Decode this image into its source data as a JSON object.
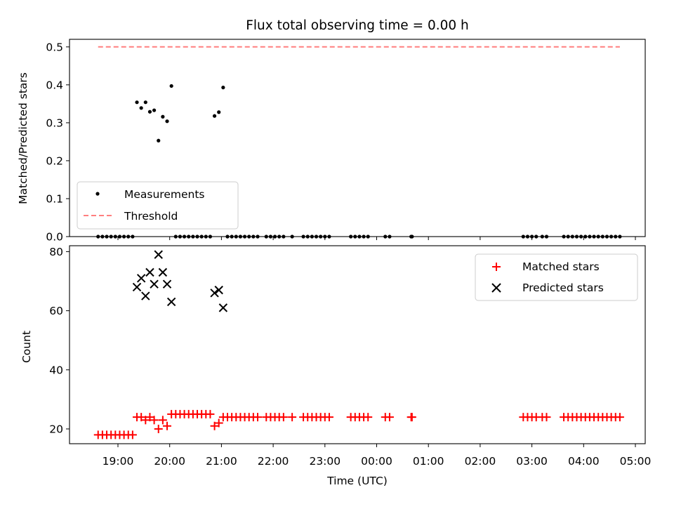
{
  "chart_data": [
    {
      "type": "scatter",
      "title": "Flux total observing time = 0.00 h",
      "xlabel": "",
      "ylabel": "Matched/Predicted stars",
      "ylim": [
        0,
        0.52
      ],
      "yticks": [
        "0.0",
        "0.1",
        "0.2",
        "0.3",
        "0.4",
        "0.5"
      ],
      "legend_position": "lower-left",
      "series": [
        {
          "name": "Measurements",
          "kind": "scatter",
          "color": "#000000",
          "points": [
            [
              "18:37",
              0
            ],
            [
              "18:42",
              0
            ],
            [
              "18:47",
              0
            ],
            [
              "18:52",
              0
            ],
            [
              "18:57",
              0
            ],
            [
              "19:02",
              0
            ],
            [
              "19:07",
              0
            ],
            [
              "19:12",
              0
            ],
            [
              "19:17",
              0
            ],
            [
              "19:22",
              0.354
            ],
            [
              "19:27",
              0.339
            ],
            [
              "19:32",
              0.354
            ],
            [
              "19:37",
              0.329
            ],
            [
              "19:42",
              0.333
            ],
            [
              "19:47",
              0.253
            ],
            [
              "19:52",
              0.316
            ],
            [
              "19:57",
              0.304
            ],
            [
              "20:02",
              0.397
            ],
            [
              "20:07",
              0
            ],
            [
              "20:12",
              0
            ],
            [
              "20:17",
              0
            ],
            [
              "20:22",
              0
            ],
            [
              "20:27",
              0
            ],
            [
              "20:32",
              0
            ],
            [
              "20:37",
              0
            ],
            [
              "20:42",
              0
            ],
            [
              "20:47",
              0
            ],
            [
              "20:52",
              0.318
            ],
            [
              "20:57",
              0.328
            ],
            [
              "21:02",
              0.393
            ],
            [
              "21:07",
              0
            ],
            [
              "21:12",
              0
            ],
            [
              "21:17",
              0
            ],
            [
              "21:22",
              0
            ],
            [
              "21:27",
              0
            ],
            [
              "21:32",
              0
            ],
            [
              "21:37",
              0
            ],
            [
              "21:42",
              0
            ],
            [
              "21:52",
              0
            ],
            [
              "21:57",
              0
            ],
            [
              "22:02",
              0
            ],
            [
              "22:07",
              0
            ],
            [
              "22:12",
              0
            ],
            [
              "22:22",
              0
            ],
            [
              "22:35",
              0
            ],
            [
              "22:40",
              0
            ],
            [
              "22:45",
              0
            ],
            [
              "22:50",
              0
            ],
            [
              "22:55",
              0
            ],
            [
              "23:00",
              0
            ],
            [
              "23:05",
              0
            ],
            [
              "23:30",
              0
            ],
            [
              "23:35",
              0
            ],
            [
              "23:40",
              0
            ],
            [
              "23:45",
              0
            ],
            [
              "23:50",
              0
            ],
            [
              "00:10",
              0
            ],
            [
              "00:15",
              0
            ],
            [
              "00:40",
              0
            ],
            [
              "00:41",
              0
            ],
            [
              "02:50",
              0
            ],
            [
              "02:55",
              0
            ],
            [
              "03:00",
              0
            ],
            [
              "03:05",
              0
            ],
            [
              "03:12",
              0
            ],
            [
              "03:17",
              0
            ],
            [
              "03:37",
              0
            ],
            [
              "03:42",
              0
            ],
            [
              "03:47",
              0
            ],
            [
              "03:52",
              0
            ],
            [
              "03:57",
              0
            ],
            [
              "04:02",
              0
            ],
            [
              "04:07",
              0
            ],
            [
              "04:12",
              0
            ],
            [
              "04:17",
              0
            ],
            [
              "04:22",
              0
            ],
            [
              "04:27",
              0
            ],
            [
              "04:32",
              0
            ],
            [
              "04:37",
              0
            ],
            [
              "04:42",
              0
            ]
          ]
        },
        {
          "name": "Threshold",
          "kind": "line",
          "color": "#ff7f7f",
          "dash": "dashed",
          "x": [
            "18:37",
            "04:42"
          ],
          "y": [
            0.5,
            0.5
          ]
        }
      ]
    },
    {
      "type": "scatter",
      "title": "",
      "xlabel": "Time (UTC)",
      "ylabel": "Count",
      "ylim": [
        15,
        82
      ],
      "yticks": [
        "20",
        "40",
        "60",
        "80"
      ],
      "xticks": [
        "19:00",
        "20:00",
        "21:00",
        "22:00",
        "23:00",
        "00:00",
        "01:00",
        "02:00",
        "03:00",
        "04:00",
        "05:00"
      ],
      "legend_position": "upper-right",
      "series": [
        {
          "name": "Matched stars",
          "kind": "plus",
          "color": "#ff0000",
          "points": [
            [
              "18:37",
              18
            ],
            [
              "18:42",
              18
            ],
            [
              "18:47",
              18
            ],
            [
              "18:52",
              18
            ],
            [
              "18:57",
              18
            ],
            [
              "19:02",
              18
            ],
            [
              "19:07",
              18
            ],
            [
              "19:12",
              18
            ],
            [
              "19:17",
              18
            ],
            [
              "19:22",
              24
            ],
            [
              "19:27",
              24
            ],
            [
              "19:32",
              23
            ],
            [
              "19:37",
              24
            ],
            [
              "19:42",
              23
            ],
            [
              "19:47",
              20
            ],
            [
              "19:52",
              23
            ],
            [
              "19:57",
              21
            ],
            [
              "20:02",
              25
            ],
            [
              "20:07",
              25
            ],
            [
              "20:12",
              25
            ],
            [
              "20:17",
              25
            ],
            [
              "20:22",
              25
            ],
            [
              "20:27",
              25
            ],
            [
              "20:32",
              25
            ],
            [
              "20:37",
              25
            ],
            [
              "20:42",
              25
            ],
            [
              "20:47",
              25
            ],
            [
              "20:52",
              21
            ],
            [
              "20:57",
              22
            ],
            [
              "21:02",
              24
            ],
            [
              "21:07",
              24
            ],
            [
              "21:12",
              24
            ],
            [
              "21:17",
              24
            ],
            [
              "21:22",
              24
            ],
            [
              "21:27",
              24
            ],
            [
              "21:32",
              24
            ],
            [
              "21:37",
              24
            ],
            [
              "21:42",
              24
            ],
            [
              "21:52",
              24
            ],
            [
              "21:57",
              24
            ],
            [
              "22:02",
              24
            ],
            [
              "22:07",
              24
            ],
            [
              "22:12",
              24
            ],
            [
              "22:22",
              24
            ],
            [
              "22:35",
              24
            ],
            [
              "22:40",
              24
            ],
            [
              "22:45",
              24
            ],
            [
              "22:50",
              24
            ],
            [
              "22:55",
              24
            ],
            [
              "23:00",
              24
            ],
            [
              "23:05",
              24
            ],
            [
              "23:30",
              24
            ],
            [
              "23:35",
              24
            ],
            [
              "23:40",
              24
            ],
            [
              "23:45",
              24
            ],
            [
              "23:50",
              24
            ],
            [
              "00:10",
              24
            ],
            [
              "00:15",
              24
            ],
            [
              "00:40",
              24
            ],
            [
              "00:41",
              24
            ],
            [
              "02:50",
              24
            ],
            [
              "02:55",
              24
            ],
            [
              "03:00",
              24
            ],
            [
              "03:05",
              24
            ],
            [
              "03:12",
              24
            ],
            [
              "03:17",
              24
            ],
            [
              "03:37",
              24
            ],
            [
              "03:42",
              24
            ],
            [
              "03:47",
              24
            ],
            [
              "03:52",
              24
            ],
            [
              "03:57",
              24
            ],
            [
              "04:02",
              24
            ],
            [
              "04:07",
              24
            ],
            [
              "04:12",
              24
            ],
            [
              "04:17",
              24
            ],
            [
              "04:22",
              24
            ],
            [
              "04:27",
              24
            ],
            [
              "04:32",
              24
            ],
            [
              "04:37",
              24
            ],
            [
              "04:42",
              24
            ]
          ]
        },
        {
          "name": "Predicted stars",
          "kind": "x",
          "color": "#000000",
          "points": [
            [
              "19:22",
              68
            ],
            [
              "19:27",
              71
            ],
            [
              "19:32",
              65
            ],
            [
              "19:37",
              73
            ],
            [
              "19:42",
              69
            ],
            [
              "19:47",
              79
            ],
            [
              "19:52",
              73
            ],
            [
              "19:57",
              69
            ],
            [
              "20:02",
              63
            ],
            [
              "20:52",
              66
            ],
            [
              "20:57",
              67
            ],
            [
              "21:02",
              61
            ]
          ]
        }
      ]
    }
  ]
}
